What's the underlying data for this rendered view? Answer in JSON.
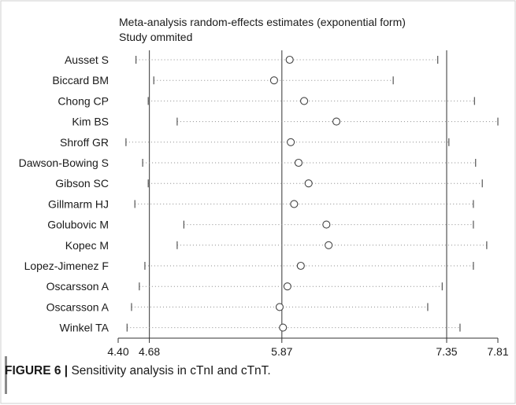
{
  "chart_data": {
    "type": "scatter",
    "title": "Meta-analysis random-effects estimates (exponential form)",
    "subtitle": "Study ommited",
    "xlim": [
      4.4,
      7.81
    ],
    "reference_lines": [
      4.68,
      5.87,
      7.35
    ],
    "x_ticks": [
      "4.40",
      "4.68",
      "5.87",
      "7.35",
      "7.81"
    ],
    "x_tick_values": [
      4.4,
      4.68,
      5.87,
      7.35,
      7.81
    ],
    "studies": [
      {
        "name": "Ausset S",
        "estimate": 5.94,
        "lower": 4.56,
        "upper": 7.27
      },
      {
        "name": "Biccard BM",
        "estimate": 5.8,
        "lower": 4.72,
        "upper": 6.87
      },
      {
        "name": "Chong CP",
        "estimate": 6.07,
        "lower": 4.67,
        "upper": 7.6
      },
      {
        "name": "Kim BS",
        "estimate": 6.36,
        "lower": 4.93,
        "upper": 7.81
      },
      {
        "name": "Shroff GR",
        "estimate": 5.95,
        "lower": 4.47,
        "upper": 7.37
      },
      {
        "name": "Dawson-Bowing S",
        "estimate": 6.02,
        "lower": 4.62,
        "upper": 7.61
      },
      {
        "name": "Gibson SC",
        "estimate": 6.11,
        "lower": 4.67,
        "upper": 7.67
      },
      {
        "name": "Gillmarm HJ",
        "estimate": 5.98,
        "lower": 4.55,
        "upper": 7.59
      },
      {
        "name": "Golubovic M",
        "estimate": 6.27,
        "lower": 4.99,
        "upper": 7.59
      },
      {
        "name": "Kopec M",
        "estimate": 6.29,
        "lower": 4.93,
        "upper": 7.71
      },
      {
        "name": "Lopez-Jimenez F",
        "estimate": 6.04,
        "lower": 4.64,
        "upper": 7.59
      },
      {
        "name": "Oscarsson A",
        "estimate": 5.92,
        "lower": 4.59,
        "upper": 7.31
      },
      {
        "name": "Oscarsson A",
        "estimate": 5.85,
        "lower": 4.52,
        "upper": 7.18
      },
      {
        "name": "Winkel TA",
        "estimate": 5.88,
        "lower": 4.48,
        "upper": 7.47
      }
    ]
  },
  "caption": {
    "label": "FIGURE 6 |",
    "text": " Sensitivity analysis in cTnI and cTnT."
  }
}
